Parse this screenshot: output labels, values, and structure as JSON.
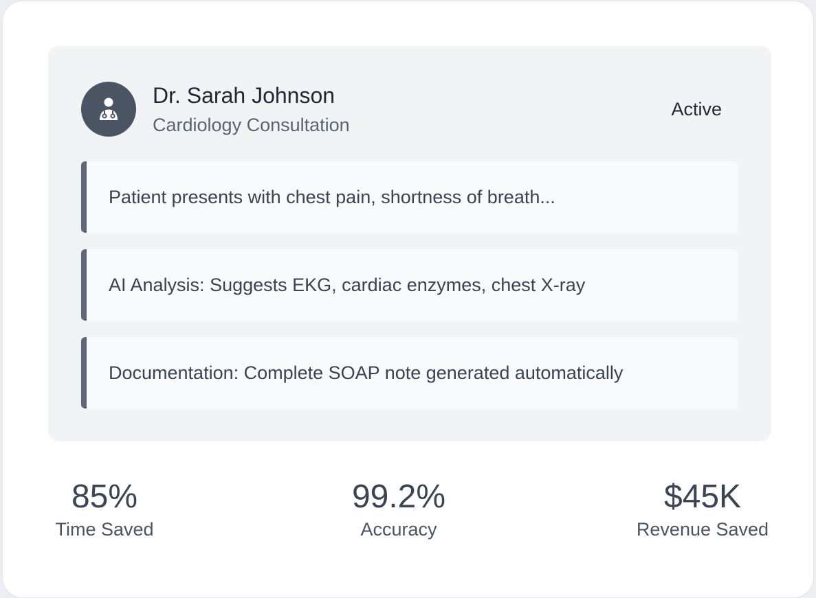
{
  "doctor": {
    "name": "Dr. Sarah Johnson",
    "specialty": "Cardiology Consultation",
    "status": "Active",
    "avatar_icon": "doctor-icon"
  },
  "notes": [
    {
      "text": "Patient presents with chest pain, shortness of breath..."
    },
    {
      "text": "AI Analysis: Suggests EKG, cardiac enzymes, chest X-ray"
    },
    {
      "text": "Documentation: Complete SOAP note generated automatically"
    }
  ],
  "stats": [
    {
      "value": "85%",
      "label": "Time Saved"
    },
    {
      "value": "99.2%",
      "label": "Accuracy"
    },
    {
      "value": "$45K",
      "label": "Revenue Saved"
    }
  ],
  "colors": {
    "panel": "#f2f3f5",
    "avatar": "#4a5462",
    "accent_border": "#5f6877"
  }
}
